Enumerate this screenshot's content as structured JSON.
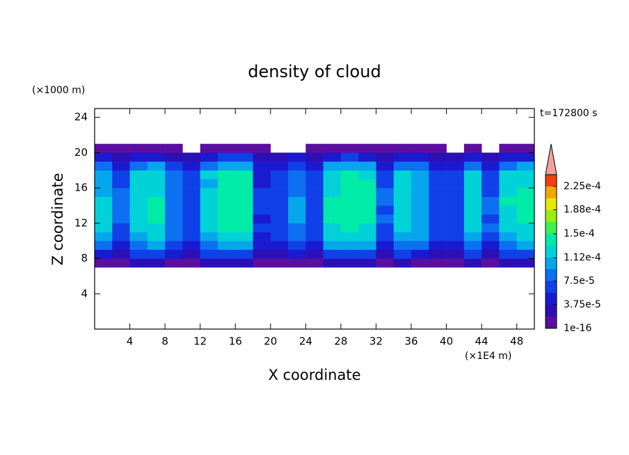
{
  "chart_data": {
    "type": "contour",
    "title": "density of cloud",
    "y_unit_label": "(×1000 m)",
    "x_unit_label": "(×1E4 m)",
    "ylabel": "Z coordinate",
    "xlabel": "X coordinate",
    "time_label": "t=172800 s",
    "xlim": [
      0,
      50
    ],
    "ylim": [
      0,
      25
    ],
    "xticks": [
      4,
      8,
      12,
      16,
      20,
      24,
      28,
      32,
      36,
      40,
      44,
      48
    ],
    "yticks": [
      4,
      8,
      12,
      16,
      20,
      24
    ],
    "x": [
      1,
      3,
      5,
      7,
      9,
      11,
      13,
      15,
      17,
      19,
      21,
      23,
      25,
      27,
      29,
      31,
      33,
      35,
      37,
      39,
      41,
      43,
      45,
      47,
      49
    ],
    "z": [
      7.5,
      8.5,
      9.5,
      10.5,
      11.5,
      12.5,
      13.5,
      14.5,
      15.5,
      16.5,
      17.5,
      18.5,
      19.5,
      20.5
    ],
    "values": [
      [
        1.8e-05,
        1.2e-05,
        2e-05,
        2.1e-05,
        1.4e-05,
        1e-05,
        2e-05,
        2.2e-05,
        2.2e-05,
        9e-06,
        1e-05,
        1.5e-05,
        1e-05,
        2.1e-05,
        2.2e-05,
        2.1e-05,
        1.2e-05,
        2e-05,
        1.6e-05,
        1e-05,
        1e-05,
        2e-05,
        1.2e-05,
        2e-05,
        2.1e-05
      ],
      [
        5.4e-05,
        3.6e-05,
        5.9e-05,
        6.3e-05,
        4e-05,
        3.2e-05,
        5.9e-05,
        6.8e-05,
        6.8e-05,
        2.7e-05,
        3.2e-05,
        4.5e-05,
        3.2e-05,
        6.3e-05,
        6.8e-05,
        6.3e-05,
        3.6e-05,
        5.9e-05,
        5e-05,
        3.2e-05,
        3.2e-05,
        5.9e-05,
        3.6e-05,
        5.9e-05,
        6.3e-05
      ],
      [
        8.4e-05,
        5.6e-05,
        9.1e-05,
        9.8e-05,
        6.3e-05,
        4.9e-05,
        9.1e-05,
        0.000105,
        0.000105,
        4.2e-05,
        4.9e-05,
        7e-05,
        4.9e-05,
        9.8e-05,
        0.000105,
        9.8e-05,
        5.6e-05,
        9.1e-05,
        7.7e-05,
        4.9e-05,
        4.9e-05,
        9.1e-05,
        5.6e-05,
        9.1e-05,
        9.8e-05
      ],
      [
        0.000102,
        6.8e-05,
        0.00011,
        0.000119,
        7.7e-05,
        6e-05,
        0.00011,
        0.000128,
        0.000128,
        5.1e-05,
        6e-05,
        8.5e-05,
        6e-05,
        0.000119,
        0.000128,
        0.000119,
        6.8e-05,
        0.00011,
        9.4e-05,
        6e-05,
        6e-05,
        0.00011,
        6.8e-05,
        0.00011,
        0.000119
      ],
      [
        0.00012,
        7e-05,
        0.00012,
        0.00013,
        9e-05,
        6e-05,
        0.00012,
        0.00014,
        0.00014,
        6e-05,
        7e-05,
        9e-05,
        6e-05,
        0.00013,
        0.00014,
        0.00013,
        7e-05,
        0.00012,
        0.0001,
        7e-05,
        7e-05,
        0.00012,
        8e-05,
        0.00012,
        0.00013
      ],
      [
        0.00012,
        8e-05,
        0.00013,
        0.00014,
        8e-05,
        7e-05,
        0.00013,
        0.00015,
        0.00015,
        5e-05,
        7e-05,
        0.0001,
        7e-05,
        0.00014,
        0.00015,
        0.00014,
        8e-05,
        0.00013,
        0.00011,
        6e-05,
        7e-05,
        0.00013,
        7e-05,
        0.00013,
        0.00014
      ],
      [
        0.00013,
        8e-05,
        0.00013,
        0.00014,
        9e-05,
        6e-05,
        0.00013,
        0.00015,
        0.00015,
        6e-05,
        6e-05,
        0.0001,
        7e-05,
        0.00014,
        0.00015,
        0.00014,
        7e-05,
        0.00013,
        0.00011,
        7e-05,
        6e-05,
        0.00013,
        8e-05,
        0.00013,
        0.00014
      ],
      [
        0.00012,
        9e-05,
        0.00013,
        0.00014,
        9e-05,
        7e-05,
        0.00012,
        0.00015,
        0.00015,
        6e-05,
        7e-05,
        0.0001,
        6e-05,
        0.00014,
        0.00015,
        0.00015,
        8e-05,
        0.00013,
        0.00011,
        7e-05,
        7e-05,
        0.00013,
        8e-05,
        0.00014,
        0.00014
      ],
      [
        0.00011,
        8e-05,
        0.00012,
        0.00013,
        8e-05,
        7e-05,
        0.00012,
        0.00014,
        0.00015,
        6e-05,
        7e-05,
        9e-05,
        7e-05,
        0.00013,
        0.00015,
        0.00014,
        8e-05,
        0.00012,
        0.0001,
        7e-05,
        7e-05,
        0.00012,
        7e-05,
        0.00013,
        0.00014
      ],
      [
        0.00011,
        7e-05,
        0.00012,
        0.00013,
        8e-05,
        6e-05,
        0.00011,
        0.00014,
        0.00014,
        5e-05,
        6e-05,
        9e-05,
        6e-05,
        0.00013,
        0.00014,
        0.00014,
        7e-05,
        0.00012,
        0.0001,
        6e-05,
        6e-05,
        0.00012,
        7e-05,
        0.00013,
        0.00013
      ],
      [
        0.000108,
        7.2e-05,
        0.000117,
        0.000126,
        8.1e-05,
        6.3e-05,
        0.000117,
        0.000135,
        0.000135,
        5.4e-05,
        6.3e-05,
        9e-05,
        6.3e-05,
        0.000126,
        0.000135,
        0.000126,
        7.2e-05,
        0.000117,
        9.9e-05,
        6.3e-05,
        6.3e-05,
        0.000117,
        7.2e-05,
        0.000117,
        0.000126
      ],
      [
        8.4e-05,
        5.6e-05,
        9.1e-05,
        9.8e-05,
        6.3e-05,
        4.9e-05,
        9.1e-05,
        0.000105,
        0.000105,
        4.2e-05,
        4.9e-05,
        7e-05,
        4.9e-05,
        9.8e-05,
        0.000105,
        9.8e-05,
        5.6e-05,
        9.1e-05,
        7.7e-05,
        4.9e-05,
        4.9e-05,
        9.1e-05,
        5.6e-05,
        9.1e-05,
        9.8e-05
      ],
      [
        4.8e-05,
        3.2e-05,
        5.2e-05,
        5.6e-05,
        3.6e-05,
        2.8e-05,
        5.2e-05,
        6e-05,
        6e-05,
        2.4e-05,
        2.8e-05,
        4e-05,
        2.8e-05,
        5.6e-05,
        6e-05,
        5.6e-05,
        3.2e-05,
        5.2e-05,
        4.4e-05,
        2.8e-05,
        2.8e-05,
        5.2e-05,
        3.2e-05,
        5.2e-05,
        5.6e-05
      ],
      [
        1.2e-05,
        8e-06,
        1.3e-05,
        1.4e-05,
        9e-06,
        null,
        1.3e-05,
        1.5e-05,
        1.5e-05,
        6e-06,
        null,
        null,
        7e-06,
        1.4e-05,
        1.5e-05,
        1.4e-05,
        8e-06,
        1.3e-05,
        1.1e-05,
        7e-06,
        null,
        1.3e-05,
        null,
        1.3e-05,
        1.4e-05
      ]
    ],
    "levels": [
      1e-16,
      1.875e-05,
      3.75e-05,
      5.625e-05,
      7.5e-05,
      9.375e-05,
      0.0001125,
      0.00013125,
      0.00015,
      0.00016875,
      0.0001875,
      0.00020625,
      0.000225,
      0.00024375
    ],
    "colors": [
      "#5a0fa0",
      "#2c10b4",
      "#1a1ad0",
      "#1040e8",
      "#0c70f0",
      "#06a6ec",
      "#00d2d8",
      "#00eaa8",
      "#3cf050",
      "#98ee10",
      "#e8e800",
      "#f0a800",
      "#f04010"
    ],
    "over_color": "#f4a0a0",
    "colorbar_ticks": [
      1e-16,
      {
        "value": 3.75e-05,
        "label": "3.75e-5"
      },
      {
        "value": 7.5e-05,
        "label": "7.5e-5"
      },
      {
        "value": 0.000112,
        "label": "1.12e-4"
      },
      {
        "value": 0.00015,
        "label": "1.5e-4"
      },
      {
        "value": 0.000188,
        "label": "1.88e-4"
      },
      {
        "value": 0.000225,
        "label": "2.25e-4"
      }
    ]
  }
}
